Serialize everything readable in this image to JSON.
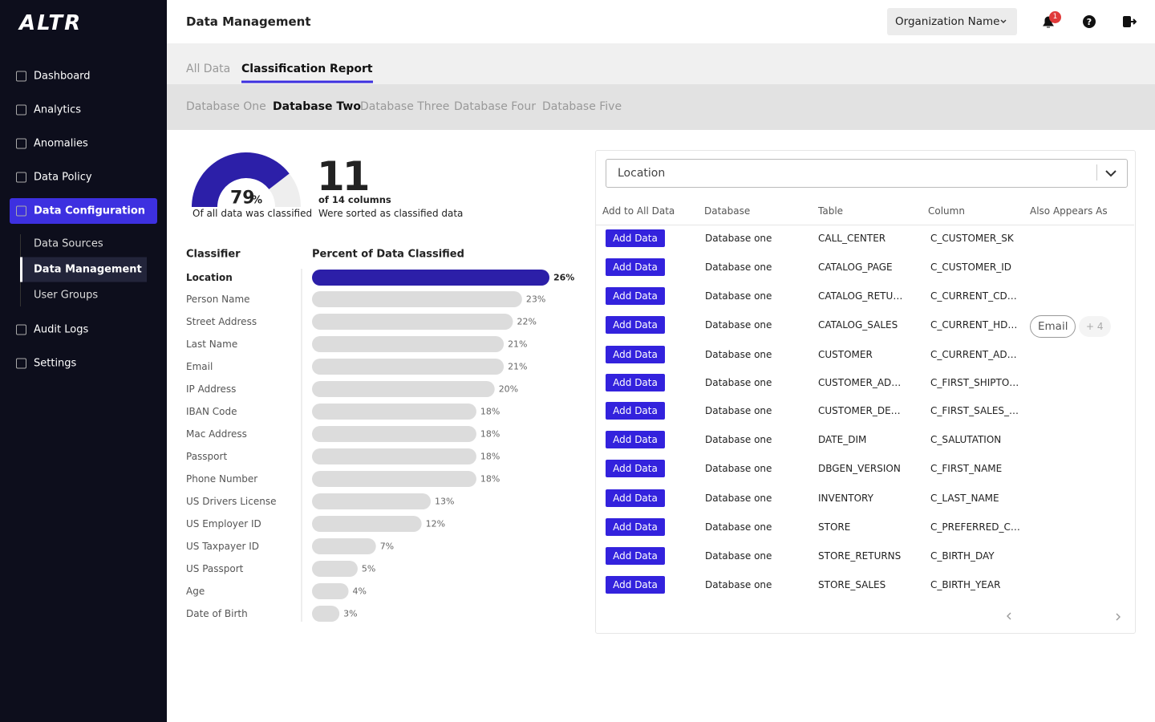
{
  "brand": "ALTR",
  "sidebar": {
    "items": [
      "Dashboard",
      "Analytics",
      "Anomalies",
      "Data Policy",
      "Data Configuration"
    ],
    "active": 4,
    "subitems": [
      "Data Sources",
      "Data Management",
      "User Groups"
    ],
    "active_sub": 1,
    "bottom_items": [
      "Audit Logs",
      "Settings"
    ]
  },
  "header": {
    "title": "Data Management",
    "org": "Organization Name",
    "notifications": 1
  },
  "tabs": {
    "items": [
      "All Data",
      "Classification Report"
    ],
    "active": 1
  },
  "database_tabs": {
    "items": [
      "Database One",
      "Database Two",
      "Database Three",
      "Database Four",
      "Database Five"
    ],
    "active": 1
  },
  "summary": {
    "gauge_value": 79,
    "gauge_unit": "%",
    "gauge_caption": "Of all data was classified",
    "count": 11,
    "count_of": "of 14 columns",
    "count_caption": "Were sorted as classified data"
  },
  "chart": {
    "type": "bar",
    "classifier_header": "Classifier",
    "percent_header": "Percent of Data Classified",
    "categories": [
      "Location",
      "Person Name",
      "Street Address",
      "Last Name",
      "Email",
      "IP Address",
      "IBAN Code",
      "Mac Address",
      "Passport",
      "Phone Number",
      "US Drivers License",
      "US Employer ID",
      "US Taxpayer ID",
      "US Passport",
      "Age",
      "Date of Birth"
    ],
    "values": [
      26,
      23,
      22,
      21,
      21,
      20,
      18,
      18,
      18,
      18,
      13,
      12,
      7,
      5,
      4,
      3
    ],
    "value_labels": [
      "26%",
      "23%",
      "22%",
      "21%",
      "21%",
      "20%",
      "18%",
      "18%",
      "18%",
      "18%",
      "13%",
      "12%",
      "7%",
      "5%",
      "4%",
      "3%"
    ],
    "highlight": 0,
    "highlight_color": "#2c1fa8",
    "color": "#dcdcdc"
  },
  "filter": {
    "selected": "Location"
  },
  "table": {
    "columns": [
      "Add to All Data",
      "Database",
      "Table",
      "Column",
      "Also Appears As"
    ],
    "button": "Add Data",
    "rows": [
      {
        "database": "Database one",
        "table": "CALL_CENTER",
        "column": "C_CUSTOMER_SK"
      },
      {
        "database": "Database one",
        "table": "CATALOG_PAGE",
        "column": "C_CUSTOMER_ID"
      },
      {
        "database": "Database one",
        "table": "CATALOG_RETURNS",
        "column": "C_CURRENT_CDEMO_SK"
      },
      {
        "database": "Database one",
        "table": "CATALOG_SALES",
        "column": "C_CURRENT_HDEMO_SK",
        "also": "Email",
        "more": "+ 4"
      },
      {
        "database": "Database one",
        "table": "CUSTOMER",
        "column": "C_CURRENT_ADDR_SK"
      },
      {
        "database": "Database one",
        "table": "CUSTOMER_ADDRESS",
        "column": "C_FIRST_SHIPTO_DATE_SK"
      },
      {
        "database": "Database one",
        "table": "CUSTOMER_DEMOGRAPHICS",
        "column": "C_FIRST_SALES_DATE_SK"
      },
      {
        "database": "Database one",
        "table": "DATE_DIM",
        "column": "C_SALUTATION"
      },
      {
        "database": "Database one",
        "table": "DBGEN_VERSION",
        "column": "C_FIRST_NAME"
      },
      {
        "database": "Database one",
        "table": "INVENTORY",
        "column": "C_LAST_NAME"
      },
      {
        "database": "Database one",
        "table": "STORE",
        "column": "C_PREFERRED_CUST_FLAG"
      },
      {
        "database": "Database one",
        "table": "STORE_RETURNS",
        "column": "C_BIRTH_DAY"
      },
      {
        "database": "Database one",
        "table": "STORE_SALES",
        "column": "C_BIRTH_YEAR"
      }
    ]
  }
}
